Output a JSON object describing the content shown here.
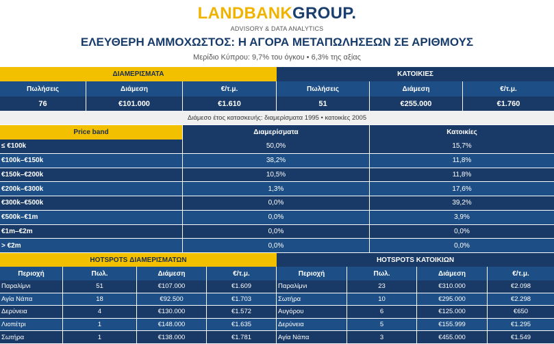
{
  "header": {
    "brand_part1": "LANDBANK",
    "brand_part2": "GROUP.",
    "tagline": "ADVISORY & DATA ANALYTICS",
    "title": "ΕΛΕΥΘΕΡΗ ΑΜΜΟΧΩΣΤΟΣ: Η ΑΓΟΡΑ ΜΕΤΑΠΩΛΗΣΕΩΝ ΣΕ ΑΡΙΘΜΟΥΣ",
    "subtitle": "Μερίδιο Κύπρου: 9,7% του όγκου • 6,3% της αξίας"
  },
  "summary": {
    "apartments": {
      "title": "ΔΙΑΜΕΡΙΣΜΑΤΑ",
      "headers": [
        "Πωλήσεις",
        "Διάμεση",
        "€/τ.μ."
      ],
      "values": [
        "76",
        "€101.000",
        "€1.610"
      ]
    },
    "houses": {
      "title": "ΚΑΤΟΙΚΙΕΣ",
      "headers": [
        "Πωλήσεις",
        "Διάμεση",
        "€/τ.μ."
      ],
      "values": [
        "51",
        "€255.000",
        "€1.760"
      ]
    }
  },
  "note": "Διάμεσο έτος κατασκευής: διαμερίσματα 1995 • κατοικίες 2005",
  "price_bands": {
    "headers": [
      "Price band",
      "Διαμερίσματα",
      "Κατοικίες"
    ],
    "rows": [
      [
        "≤ €100k",
        "50,0%",
        "15,7%"
      ],
      [
        "€100k–€150k",
        "38,2%",
        "11,8%"
      ],
      [
        "€150k–€200k",
        "10,5%",
        "11,8%"
      ],
      [
        "€200k–€300k",
        "1,3%",
        "17,6%"
      ],
      [
        "€300k–€500k",
        "0,0%",
        "39,2%"
      ],
      [
        "€500k–€1m",
        "0,0%",
        "3,9%"
      ],
      [
        "€1m–€2m",
        "0,0%",
        "0,0%"
      ],
      [
        "> €2m",
        "0,0%",
        "0,0%"
      ]
    ]
  },
  "hotspots": {
    "apartments": {
      "title": "HOTSPOTS ΔΙΑΜΕΡΙΣΜΑΤΩΝ",
      "headers": [
        "Περιοχή",
        "Πωλ.",
        "Διάμεση",
        "€/τ.μ."
      ],
      "rows": [
        [
          "Παραλίμνι",
          "51",
          "€107.000",
          "€1.609"
        ],
        [
          "Αγία Νάπα",
          "18",
          "€92.500",
          "€1.703"
        ],
        [
          "Δερύνεια",
          "4",
          "€130.000",
          "€1.572"
        ],
        [
          "Λιοπέτρι",
          "1",
          "€148.000",
          "€1.635"
        ],
        [
          "Σωτήρα",
          "1",
          "€138.000",
          "€1.781"
        ]
      ]
    },
    "houses": {
      "title": "HOTSPOTS ΚΑΤΟΙΚΙΩΝ",
      "headers": [
        "Περιοχή",
        "Πωλ.",
        "Διάμεση",
        "€/τ.μ."
      ],
      "rows": [
        [
          "Παραλίμνι",
          "23",
          "€310.000",
          "€2.098"
        ],
        [
          "Σωτήρα",
          "10",
          "€295.000",
          "€2.298"
        ],
        [
          "Αυγόρου",
          "6",
          "€125.000",
          "€650"
        ],
        [
          "Δερύνεια",
          "5",
          "€155.999",
          "€1.295"
        ],
        [
          "Αγία Νάπα",
          "3",
          "€455.000",
          "€1.549"
        ]
      ]
    }
  }
}
